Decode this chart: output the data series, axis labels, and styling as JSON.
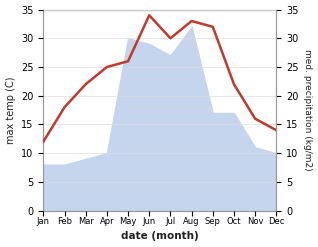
{
  "months": [
    "Jan",
    "Feb",
    "Mar",
    "Apr",
    "May",
    "Jun",
    "Jul",
    "Aug",
    "Sep",
    "Oct",
    "Nov",
    "Dec"
  ],
  "temperature": [
    12,
    18,
    22,
    25,
    26,
    34,
    30,
    33,
    32,
    22,
    16,
    14
  ],
  "precipitation": [
    8,
    8,
    9,
    10,
    30,
    29,
    27,
    32,
    17,
    17,
    11,
    10
  ],
  "temp_color": "#c0392b",
  "precip_color": "#c5d5ee",
  "ylim_left": [
    0,
    35
  ],
  "ylim_right": [
    0,
    35
  ],
  "yticks": [
    0,
    5,
    10,
    15,
    20,
    25,
    30,
    35
  ],
  "xlabel": "date (month)",
  "ylabel_left": "max temp (C)",
  "ylabel_right": "med. precipitation (kg/m2)",
  "background_color": "#ffffff",
  "spine_color": "#999999",
  "tick_color": "#222222",
  "grid_color": "#dddddd"
}
